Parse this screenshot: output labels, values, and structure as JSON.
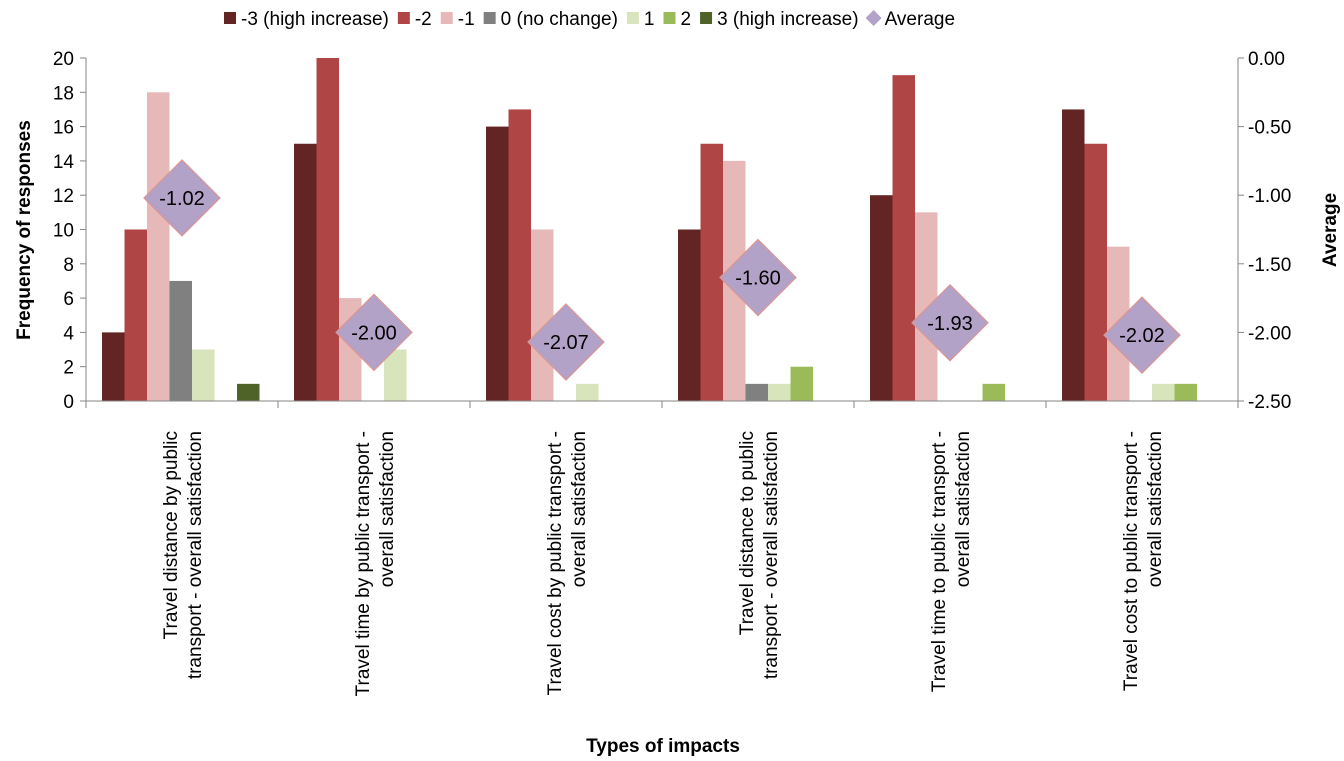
{
  "chart_data": {
    "type": "bar",
    "categories": [
      [
        "Travel distance by public",
        "transport - overall satisfaction"
      ],
      [
        "Travel time by public transport -",
        "overall satisfaction"
      ],
      [
        "Travel cost by public transport -",
        "overall satisfaction"
      ],
      [
        "Travel distance to public",
        "transport - overall satisfaction"
      ],
      [
        "Travel time to public transport -",
        "overall satisfaction"
      ],
      [
        "Travel cost to public transport -",
        "overall satisfaction"
      ]
    ],
    "series": [
      {
        "name": "-3 (high increase)",
        "color": "#632523",
        "values": [
          4,
          15,
          16,
          10,
          12,
          17
        ]
      },
      {
        "name": "-2",
        "color": "#b04545",
        "values": [
          10,
          20,
          17,
          15,
          19,
          15
        ]
      },
      {
        "name": "-1",
        "color": "#e6b8b7",
        "values": [
          18,
          6,
          10,
          14,
          11,
          9
        ]
      },
      {
        "name": "0 (no change)",
        "color": "#808080",
        "values": [
          7,
          0,
          0,
          1,
          0,
          0
        ]
      },
      {
        "name": "1",
        "color": "#d8e4bc",
        "values": [
          3,
          3,
          1,
          1,
          0,
          1
        ]
      },
      {
        "name": "2",
        "color": "#9bbb59",
        "values": [
          0,
          0,
          0,
          2,
          1,
          1
        ]
      },
      {
        "name": "3 (high increase)",
        "color": "#4f6228",
        "values": [
          1,
          0,
          0,
          0,
          0,
          0
        ]
      }
    ],
    "average": {
      "name": "Average",
      "color": "#b3a2c7",
      "border": "#d99694",
      "values": [
        -1.02,
        -2.0,
        -2.07,
        -1.6,
        -1.93,
        -2.02
      ],
      "labels": [
        "-1.02",
        "-2.00",
        "-2.07",
        "-1.60",
        "-1.93",
        "-2.02"
      ]
    },
    "xlabel": "Types of impacts",
    "ylabel": "Frequency of responses",
    "y2label": "Average",
    "ylim": [
      0,
      20
    ],
    "yticks": [
      "0",
      "2",
      "4",
      "6",
      "8",
      "10",
      "12",
      "14",
      "16",
      "18",
      "20"
    ],
    "y2lim": [
      -2.5,
      0
    ],
    "y2ticks": [
      "-2.50",
      "-2.00",
      "-1.50",
      "-1.00",
      "-0.50",
      "0.00"
    ],
    "grid": false,
    "legend_position": "top"
  }
}
